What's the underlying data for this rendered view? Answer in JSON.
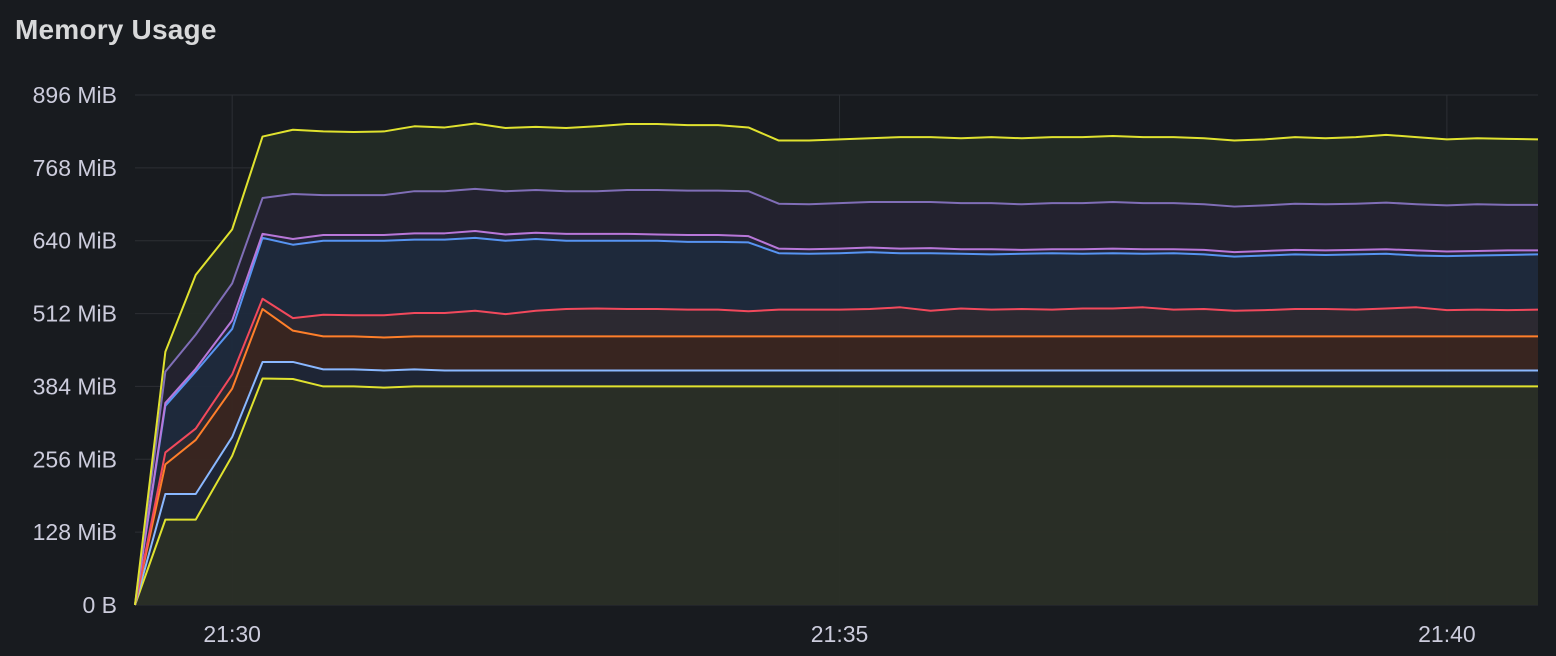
{
  "panel": {
    "title": "Memory Usage"
  },
  "chart_data": {
    "type": "area",
    "title": "Memory Usage",
    "xlabel": "",
    "ylabel": "",
    "stacked": true,
    "legend": "none",
    "grid": true,
    "x_unit": "time",
    "x_ticks": [
      "21:30",
      "21:35",
      "21:40"
    ],
    "x_range": [
      "21:29:12",
      "21:40:45"
    ],
    "y_unit": "MiB",
    "y_ticks": [
      "0 B",
      "128 MiB",
      "256 MiB",
      "384 MiB",
      "512 MiB",
      "640 MiB",
      "768 MiB",
      "896 MiB"
    ],
    "ylim": [
      0,
      896
    ],
    "x": [
      "21:29:12",
      "21:29:27",
      "21:29:42",
      "21:30:00",
      "21:30:15",
      "21:30:30",
      "21:30:45",
      "21:31:00",
      "21:31:15",
      "21:31:30",
      "21:31:45",
      "21:32:00",
      "21:32:15",
      "21:32:30",
      "21:32:45",
      "21:33:00",
      "21:33:15",
      "21:33:30",
      "21:33:45",
      "21:34:00",
      "21:34:15",
      "21:34:30",
      "21:34:45",
      "21:35:00",
      "21:35:15",
      "21:35:30",
      "21:35:45",
      "21:36:00",
      "21:36:15",
      "21:36:30",
      "21:36:45",
      "21:37:00",
      "21:37:15",
      "21:37:30",
      "21:37:45",
      "21:38:00",
      "21:38:15",
      "21:38:30",
      "21:38:45",
      "21:39:00",
      "21:39:15",
      "21:39:30",
      "21:39:45",
      "21:40:00",
      "21:40:15",
      "21:40:30",
      "21:40:45"
    ],
    "series": [
      {
        "color": "#e0e22f",
        "fill": "#2a2f27",
        "values": [
          0,
          150,
          150,
          262,
          398,
          397,
          384,
          384,
          382,
          384,
          384,
          384,
          384,
          384,
          384,
          384,
          384,
          384,
          384,
          384,
          384,
          384,
          384,
          384,
          384,
          384,
          384,
          384,
          384,
          384,
          384,
          384,
          384,
          384,
          384,
          384,
          384,
          384,
          384,
          384,
          384,
          384,
          384,
          384,
          384,
          384,
          384
        ]
      },
      {
        "color": "#8ab8ff",
        "fill": "#1f2637",
        "values": [
          0,
          195,
          195,
          295,
          427,
          427,
          414,
          414,
          412,
          414,
          412,
          412,
          412,
          412,
          412,
          412,
          412,
          412,
          412,
          412,
          412,
          412,
          412,
          412,
          412,
          412,
          412,
          412,
          412,
          412,
          412,
          412,
          412,
          412,
          412,
          412,
          412,
          412,
          412,
          412,
          412,
          412,
          412,
          412,
          412,
          412,
          412
        ]
      },
      {
        "color": "#ff7f2a",
        "fill": "#3a2621",
        "values": [
          0,
          247,
          290,
          380,
          520,
          482,
          472,
          472,
          470,
          472,
          472,
          472,
          472,
          472,
          472,
          472,
          472,
          472,
          472,
          472,
          472,
          472,
          472,
          472,
          472,
          472,
          472,
          472,
          472,
          472,
          472,
          472,
          472,
          472,
          472,
          472,
          472,
          472,
          472,
          472,
          472,
          472,
          472,
          472,
          472,
          472,
          472
        ]
      },
      {
        "color": "#f2495c",
        "fill": "#2d2a33",
        "values": [
          0,
          268,
          310,
          405,
          538,
          504,
          510,
          509,
          509,
          513,
          513,
          517,
          511,
          517,
          520,
          521,
          520,
          520,
          519,
          519,
          516,
          519,
          519,
          519,
          520,
          523,
          517,
          521,
          519,
          520,
          519,
          521,
          521,
          523,
          519,
          520,
          517,
          518,
          520,
          520,
          519,
          521,
          523,
          518,
          519,
          518,
          519
        ]
      },
      {
        "color": "#5794f2",
        "fill": "#1f2a3d",
        "values": [
          0,
          350,
          410,
          485,
          645,
          633,
          640,
          640,
          640,
          642,
          642,
          645,
          640,
          643,
          640,
          640,
          640,
          640,
          638,
          638,
          637,
          618,
          617,
          618,
          620,
          618,
          618,
          617,
          616,
          617,
          618,
          617,
          618,
          617,
          618,
          616,
          612,
          614,
          616,
          615,
          616,
          617,
          614,
          613,
          614,
          615,
          616
        ]
      },
      {
        "color": "#b877d9",
        "fill": "#24263a",
        "values": [
          0,
          355,
          415,
          500,
          652,
          643,
          650,
          650,
          650,
          653,
          653,
          657,
          651,
          654,
          652,
          652,
          652,
          651,
          650,
          650,
          648,
          626,
          625,
          626,
          628,
          626,
          627,
          625,
          625,
          624,
          625,
          625,
          626,
          625,
          625,
          624,
          620,
          622,
          624,
          623,
          624,
          625,
          623,
          621,
          622,
          623,
          623
        ]
      },
      {
        "color": "#806eb7",
        "fill": "#242330",
        "values": [
          0,
          410,
          475,
          565,
          715,
          722,
          720,
          720,
          720,
          727,
          727,
          731,
          727,
          729,
          727,
          727,
          729,
          729,
          728,
          728,
          727,
          705,
          704,
          706,
          708,
          708,
          708,
          706,
          706,
          704,
          706,
          706,
          708,
          706,
          706,
          704,
          700,
          702,
          705,
          704,
          705,
          707,
          704,
          702,
          704,
          703,
          703
        ]
      },
      {
        "color": "#e0e22f",
        "fill": "#232b26",
        "values": [
          0,
          445,
          580,
          660,
          823,
          835,
          832,
          831,
          832,
          841,
          839,
          846,
          838,
          840,
          838,
          841,
          845,
          845,
          843,
          843,
          839,
          816,
          816,
          818,
          820,
          822,
          822,
          820,
          822,
          820,
          822,
          822,
          824,
          822,
          822,
          820,
          816,
          818,
          822,
          820,
          822,
          826,
          822,
          818,
          820,
          819,
          818
        ]
      }
    ]
  }
}
